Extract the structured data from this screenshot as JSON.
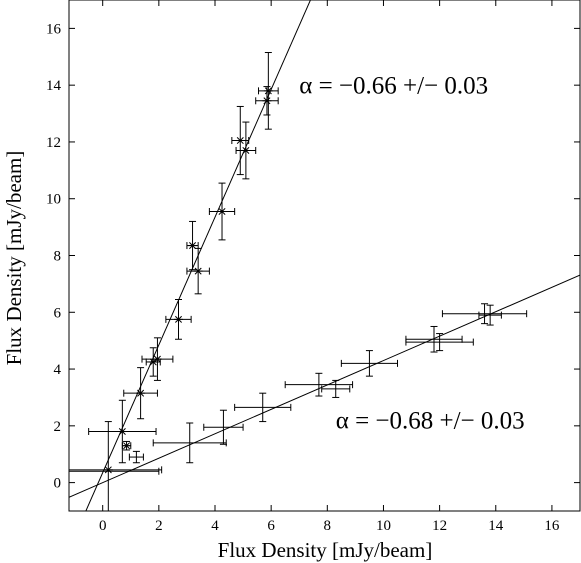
{
  "chart_data": {
    "type": "scatter",
    "xlabel": "Flux Density [mJy/beam]",
    "ylabel": "Flux Density [mJy/beam]",
    "xlim": [
      -1.2,
      17
    ],
    "ylim": [
      -1,
      17
    ],
    "xticks": [
      0,
      2,
      4,
      6,
      8,
      10,
      12,
      14,
      16
    ],
    "yticks": [
      0,
      2,
      4,
      6,
      8,
      10,
      12,
      14,
      16
    ],
    "grid": false,
    "marker_color": "#000000",
    "series": [
      {
        "marker": "star",
        "fit": {
          "slope": 2.25,
          "intercept": 0.35
        },
        "points": [
          {
            "x": 0.2,
            "y": 0.45,
            "xerr": 1.9,
            "yerr": 1.7
          },
          {
            "x": 0.7,
            "y": 1.8,
            "xerr": 1.2,
            "yerr": 1.1
          },
          {
            "x": 0.85,
            "y": 1.3,
            "xerr": 0.15,
            "yerr": 0.15
          },
          {
            "x": 1.35,
            "y": 3.15,
            "xerr": 0.6,
            "yerr": 0.9
          },
          {
            "x": 1.8,
            "y": 4.25,
            "xerr": 0.25,
            "yerr": 0.5
          },
          {
            "x": 1.95,
            "y": 4.35,
            "xerr": 0.55,
            "yerr": 0.75
          },
          {
            "x": 2.7,
            "y": 5.75,
            "xerr": 0.45,
            "yerr": 0.7
          },
          {
            "x": 3.2,
            "y": 8.35,
            "xerr": 0.2,
            "yerr": 0.85
          },
          {
            "x": 3.4,
            "y": 7.45,
            "xerr": 0.4,
            "yerr": 0.8
          },
          {
            "x": 4.25,
            "y": 9.55,
            "xerr": 0.45,
            "yerr": 1.0
          },
          {
            "x": 4.9,
            "y": 12.05,
            "xerr": 0.3,
            "yerr": 1.2
          },
          {
            "x": 5.1,
            "y": 11.7,
            "xerr": 0.35,
            "yerr": 1.0
          },
          {
            "x": 5.85,
            "y": 13.45,
            "xerr": 0.4,
            "yerr": 0.5
          },
          {
            "x": 5.9,
            "y": 13.8,
            "xerr": 0.35,
            "yerr": 1.35
          }
        ]
      },
      {
        "marker": "none",
        "fit": {
          "slope": 0.43,
          "intercept": 0.0
        },
        "points": [
          {
            "x": 0.0,
            "y": 0.4,
            "xerr": 2.0,
            "yerr": 0.0
          },
          {
            "x": 1.2,
            "y": 0.9,
            "xerr": 0.25,
            "yerr": 0.2
          },
          {
            "x": 3.1,
            "y": 1.4,
            "xerr": 1.3,
            "yerr": 0.7
          },
          {
            "x": 4.3,
            "y": 1.95,
            "xerr": 0.7,
            "yerr": 0.6
          },
          {
            "x": 5.7,
            "y": 2.65,
            "xerr": 1.0,
            "yerr": 0.5
          },
          {
            "x": 7.7,
            "y": 3.45,
            "xerr": 1.2,
            "yerr": 0.4
          },
          {
            "x": 8.3,
            "y": 3.3,
            "xerr": 0.5,
            "yerr": 0.3
          },
          {
            "x": 9.5,
            "y": 4.2,
            "xerr": 1.0,
            "yerr": 0.45
          },
          {
            "x": 11.8,
            "y": 5.05,
            "xerr": 1.0,
            "yerr": 0.45
          },
          {
            "x": 12.0,
            "y": 4.95,
            "xerr": 1.2,
            "yerr": 0.3
          },
          {
            "x": 13.6,
            "y": 5.95,
            "xerr": 1.5,
            "yerr": 0.35
          },
          {
            "x": 13.8,
            "y": 5.9,
            "xerr": 0.4,
            "yerr": 0.35
          }
        ]
      }
    ],
    "annotations": [
      {
        "text": "α = −0.66 +/− 0.03",
        "x": 7.0,
        "y": 13.7
      },
      {
        "text": "α = −0.68 +/− 0.03",
        "x": 8.3,
        "y": 1.9
      }
    ]
  }
}
